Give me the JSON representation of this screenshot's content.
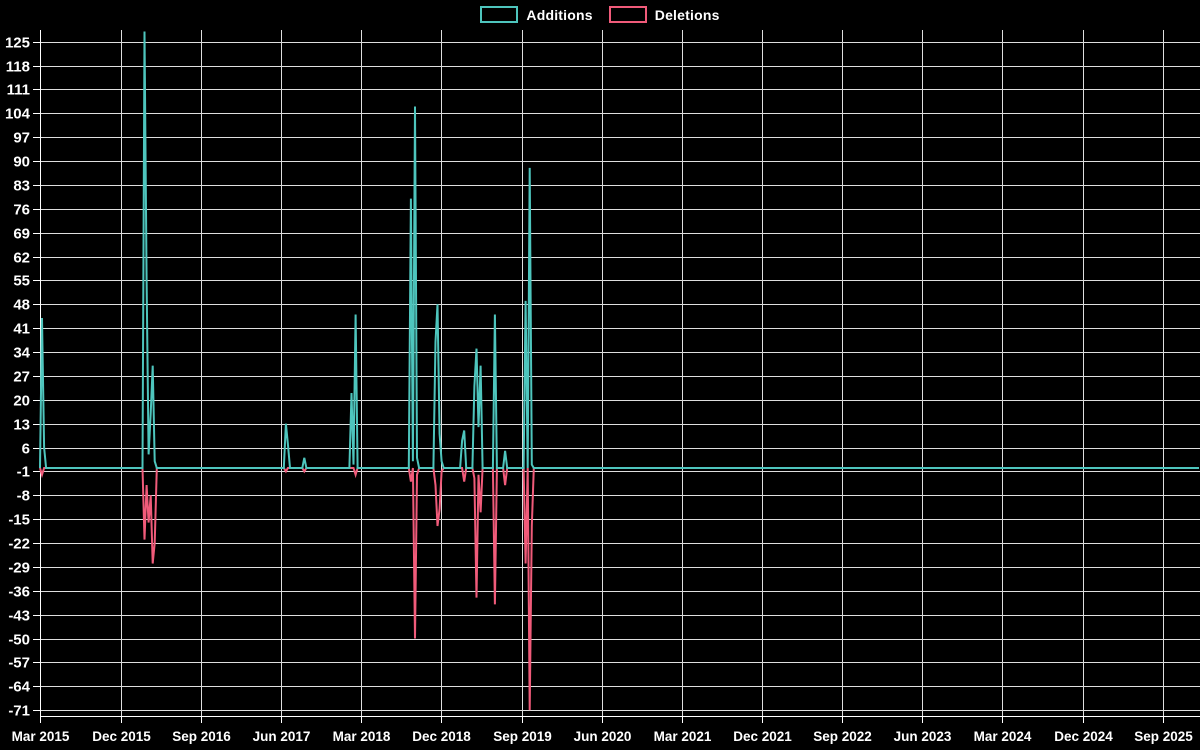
{
  "colors": {
    "background": "#000000",
    "grid": "#dedede",
    "axis": "#ffffff",
    "text": "#ffffff",
    "additions": "#4EC5BD",
    "deletions": "#F05B7A"
  },
  "legend": {
    "items": [
      {
        "label": "Additions",
        "color": "#4EC5BD"
      },
      {
        "label": "Deletions",
        "color": "#F05B7A"
      }
    ]
  },
  "chart_data": {
    "type": "line",
    "title": "",
    "xlabel": "",
    "ylabel": "",
    "grid": true,
    "legend_position": "top-center",
    "y_axis": {
      "min": -71,
      "max": 125,
      "step": 7,
      "tick_labels": [
        "125",
        "118",
        "111",
        "104",
        "97",
        "90",
        "83",
        "76",
        "69",
        "62",
        "55",
        "48",
        "41",
        "34",
        "27",
        "20",
        "13",
        "6",
        "-1",
        "-8",
        "-15",
        "-22",
        "-29",
        "-36",
        "-43",
        "-50",
        "-57",
        "-64",
        "-71"
      ]
    },
    "x_axis": {
      "start_date": "2015-03-01",
      "end_date": "2025-09-01",
      "tick_dates": [
        "2015-03-01",
        "2015-12-01",
        "2016-09-01",
        "2017-06-01",
        "2018-03-01",
        "2018-12-01",
        "2019-09-01",
        "2020-06-01",
        "2021-03-01",
        "2021-12-01",
        "2022-09-01",
        "2023-06-01",
        "2024-03-01",
        "2024-12-01",
        "2025-09-01"
      ],
      "tick_labels": [
        "Mar 2015",
        "Dec 2015",
        "Sep 2016",
        "Jun 2017",
        "Mar 2018",
        "Dec 2018",
        "Sep 2019",
        "Jun 2020",
        "Mar 2021",
        "Dec 2021",
        "Sep 2022",
        "Jun 2023",
        "Mar 2024",
        "Dec 2024",
        "Sep 2025"
      ]
    },
    "weeks": {
      "start": "2015-03-01",
      "step_days": 7,
      "baseline_value": 0
    },
    "series": [
      {
        "name": "Additions",
        "color": "#4EC5BD",
        "weekly_nonzero": {
          "2015-03-08": 44,
          "2015-03-15": 6,
          "2016-02-21": 128,
          "2016-02-28": 55,
          "2016-03-06": 4,
          "2016-03-13": 16,
          "2016-03-20": 30,
          "2016-03-27": 2,
          "2017-06-18": 13,
          "2017-06-25": 7,
          "2017-08-20": 3,
          "2018-01-28": 22,
          "2018-02-04": 1,
          "2018-02-11": 45,
          "2018-08-19": 79,
          "2018-08-26": 2,
          "2018-09-02": 106,
          "2018-09-09": 3,
          "2018-11-11": 37,
          "2018-11-18": 48,
          "2018-11-25": 10,
          "2018-12-02": 2,
          "2019-02-10": 8,
          "2019-02-17": 11,
          "2019-03-24": 24,
          "2019-03-31": 35,
          "2019-04-07": 12,
          "2019-04-14": 30,
          "2019-06-02": 45,
          "2019-07-07": 5,
          "2019-09-15": 49,
          "2019-09-29": 88,
          "2019-10-06": 1
        }
      },
      {
        "name": "Deletions",
        "color": "#F05B7A",
        "weekly_nonzero": {
          "2015-03-08": -2,
          "2016-02-21": -21,
          "2016-02-28": -5,
          "2016-03-06": -16,
          "2016-03-13": -8,
          "2016-03-20": -28,
          "2016-03-27": -22,
          "2017-06-18": -1,
          "2017-08-20": -1,
          "2018-02-11": -2,
          "2018-08-19": -4,
          "2018-09-02": -50,
          "2018-09-09": -2,
          "2018-11-11": -5,
          "2018-11-18": -17,
          "2018-11-25": -12,
          "2018-12-02": -1,
          "2019-02-17": -4,
          "2019-03-24": -3,
          "2019-03-31": -38,
          "2019-04-07": -2,
          "2019-04-14": -13,
          "2019-06-02": -40,
          "2019-07-07": -5,
          "2019-09-15": -28,
          "2019-09-29": -71,
          "2019-10-06": -17
        }
      }
    ]
  }
}
